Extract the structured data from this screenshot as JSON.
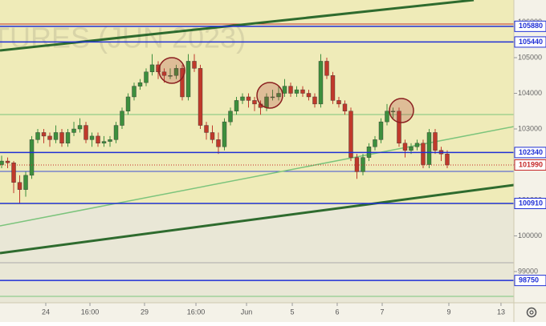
{
  "chart_data": {
    "type": "candlestick",
    "watermark": "TURES (JUN 2023)",
    "up_color": "#3d8f3d",
    "down_color": "#c0392b",
    "candles": [
      [
        102000,
        102250,
        101900,
        102100
      ],
      [
        102100,
        102200,
        101900,
        102050
      ],
      [
        102050,
        102100,
        101200,
        101500
      ],
      [
        101500,
        101700,
        100900,
        101300
      ],
      [
        101300,
        101800,
        101100,
        101700
      ],
      [
        101700,
        102800,
        101600,
        102700
      ],
      [
        102700,
        103000,
        102600,
        102900
      ],
      [
        102900,
        103000,
        102600,
        102800
      ],
      [
        102800,
        102900,
        102500,
        102700
      ],
      [
        102700,
        103100,
        102600,
        102900
      ],
      [
        102900,
        103000,
        102500,
        102600
      ],
      [
        102600,
        103000,
        102500,
        102900
      ],
      [
        102900,
        103200,
        102800,
        103000
      ],
      [
        103000,
        103300,
        102900,
        103100
      ],
      [
        103100,
        103200,
        102600,
        102700
      ],
      [
        102700,
        102900,
        102500,
        102800
      ],
      [
        102800,
        102900,
        102500,
        102600
      ],
      [
        102600,
        102800,
        102500,
        102650
      ],
      [
        102650,
        102800,
        102500,
        102700
      ],
      [
        102700,
        103200,
        102600,
        103100
      ],
      [
        103100,
        103600,
        103000,
        103500
      ],
      [
        103500,
        104000,
        103400,
        103900
      ],
      [
        103900,
        104300,
        103800,
        104200
      ],
      [
        104200,
        104400,
        104100,
        104300
      ],
      [
        104300,
        104700,
        104200,
        104600
      ],
      [
        104600,
        105100,
        104500,
        104800
      ],
      [
        104800,
        104900,
        104400,
        104600
      ],
      [
        104600,
        104700,
        104300,
        104500
      ],
      [
        104500,
        104700,
        104400,
        104500
      ],
      [
        104500,
        104800,
        104400,
        104700
      ],
      [
        104700,
        104800,
        103800,
        103900
      ],
      [
        103900,
        105100,
        103800,
        104900
      ],
      [
        104900,
        105100,
        104600,
        104700
      ],
      [
        104700,
        104800,
        103000,
        103100
      ],
      [
        103100,
        103200,
        102700,
        102900
      ],
      [
        102900,
        103100,
        102600,
        102700
      ],
      [
        102700,
        102900,
        102300,
        102500
      ],
      [
        102500,
        103300,
        102400,
        103200
      ],
      [
        103200,
        103600,
        103100,
        103500
      ],
      [
        103500,
        103900,
        103400,
        103800
      ],
      [
        103800,
        104000,
        103700,
        103900
      ],
      [
        103900,
        104000,
        103600,
        103800
      ],
      [
        103800,
        103900,
        103500,
        103700
      ],
      [
        103700,
        103800,
        103400,
        103600
      ],
      [
        103600,
        104000,
        103500,
        103900
      ],
      [
        103900,
        104100,
        103800,
        103900
      ],
      [
        103900,
        104200,
        103800,
        104000
      ],
      [
        104000,
        104400,
        103900,
        104200
      ],
      [
        104200,
        104300,
        103900,
        104000
      ],
      [
        104000,
        104200,
        103900,
        104100
      ],
      [
        104100,
        104200,
        103900,
        104000
      ],
      [
        104000,
        104100,
        103800,
        103900
      ],
      [
        103900,
        104000,
        103600,
        103700
      ],
      [
        103700,
        105100,
        103600,
        104900
      ],
      [
        104900,
        105000,
        104400,
        104500
      ],
      [
        104500,
        104600,
        103700,
        103800
      ],
      [
        103800,
        103900,
        103600,
        103700
      ],
      [
        103700,
        103800,
        103400,
        103500
      ],
      [
        103500,
        103600,
        102100,
        102200
      ],
      [
        102200,
        102300,
        101600,
        101800
      ],
      [
        101800,
        102300,
        101700,
        102200
      ],
      [
        102200,
        102600,
        102100,
        102500
      ],
      [
        102500,
        102800,
        102400,
        102700
      ],
      [
        102700,
        103300,
        102600,
        103200
      ],
      [
        103200,
        103700,
        103100,
        103500
      ],
      [
        103500,
        103600,
        103300,
        103500
      ],
      [
        103500,
        103600,
        102500,
        102600
      ],
      [
        102600,
        102700,
        102200,
        102400
      ],
      [
        102400,
        102600,
        102300,
        102500
      ],
      [
        102500,
        102700,
        102400,
        102600
      ],
      [
        102600,
        102700,
        101900,
        102000
      ],
      [
        102000,
        103000,
        101900,
        102900
      ],
      [
        102900,
        103000,
        102300,
        102400
      ],
      [
        102400,
        102500,
        102100,
        102300
      ],
      [
        102300,
        102400,
        101900,
        101990
      ]
    ],
    "xlim": [
      -0.27,
      85.07
    ],
    "xticks": [
      {
        "value": 7.33,
        "label": "24"
      },
      {
        "value": 14.67,
        "label": "16:00"
      },
      {
        "value": 23.73,
        "label": "29"
      },
      {
        "value": 32.27,
        "label": "16:00"
      },
      {
        "value": 40.67,
        "label": "Jun"
      },
      {
        "value": 48.27,
        "label": "5"
      },
      {
        "value": 55.73,
        "label": "6"
      },
      {
        "value": 63.2,
        "label": "7"
      },
      {
        "value": 74.27,
        "label": "9"
      },
      {
        "value": 82.93,
        "label": "13"
      }
    ],
    "ylim": [
      98124,
      106618
    ],
    "yticks": [
      99000,
      100000,
      101000,
      102000,
      103000,
      104000,
      105000,
      106000
    ],
    "levels": [
      {
        "value": 105880,
        "color": "#1f2fd6"
      },
      {
        "value": 105440,
        "color": "#1f2fd6"
      },
      {
        "value": 102340,
        "color": "#1f2fd6"
      },
      {
        "value": 100910,
        "color": "#1f2fd6"
      },
      {
        "value": 98750,
        "color": "#1f2fd6"
      }
    ],
    "last_price": {
      "value": 101990,
      "color": "#c62828"
    }
  }
}
